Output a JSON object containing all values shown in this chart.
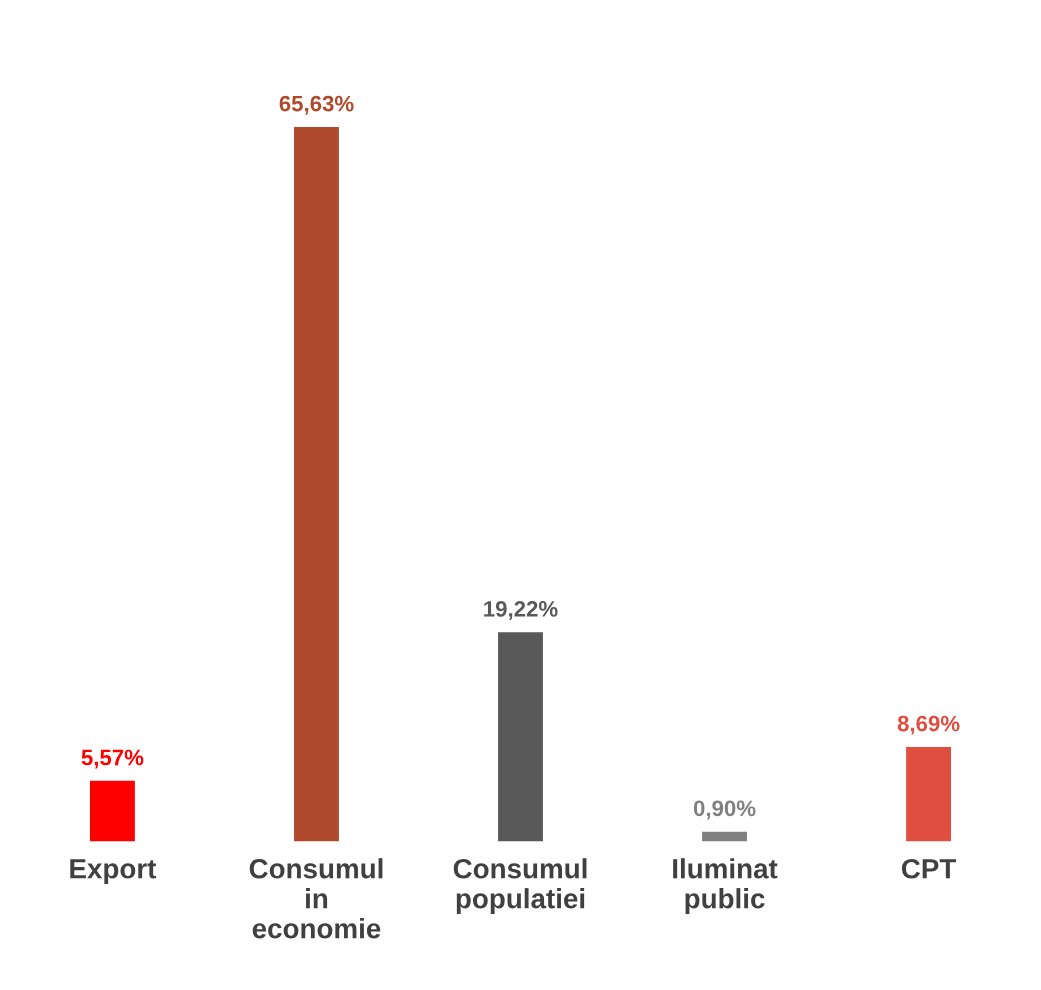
{
  "chart_data": {
    "type": "bar",
    "categories": [
      "Export",
      "Consumul\nin\neconomie",
      "Consumul\npopulatiei",
      "Iluminat\npublic",
      "CPT"
    ],
    "values": [
      5.57,
      65.63,
      19.22,
      0.9,
      8.69
    ],
    "colors": [
      "#ff0000",
      "#b04a2c",
      "#595959",
      "#808080",
      "#e04e40"
    ],
    "value_labels": [
      "5,57%",
      "65,63%",
      "19,22%",
      "0,90%",
      "8,69%"
    ],
    "tick_labels": "x",
    "grid": false,
    "legend": false
  }
}
